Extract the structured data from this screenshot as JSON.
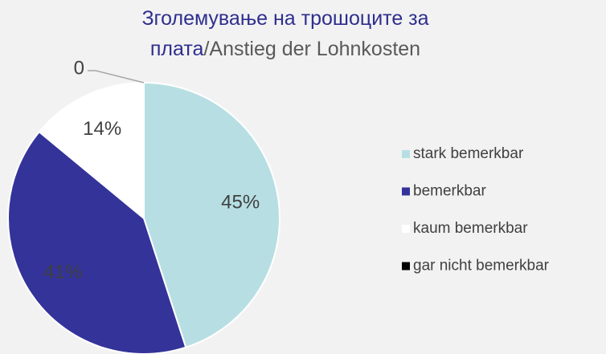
{
  "chart_data": {
    "type": "pie",
    "title_parts": [
      {
        "text": "Зголемување на трошоците за плата",
        "color": "#2e2e8f"
      },
      {
        "text": "/Anstieg der Lohnkosten",
        "color": "#595959"
      }
    ],
    "categories": [
      "stark bemerkbar",
      "bemerkbar",
      "kaum bemerkbar",
      "gar nicht bemerkbar"
    ],
    "values": [
      45,
      41,
      14,
      0
    ],
    "value_labels": [
      "45%",
      "41%",
      "14%",
      "0"
    ],
    "colors": [
      "#b7dfe3",
      "#33339a",
      "#ffffff",
      "#000000"
    ]
  }
}
